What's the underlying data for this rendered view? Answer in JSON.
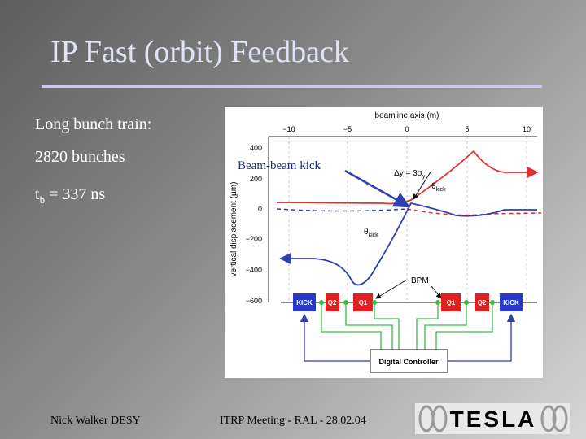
{
  "slide": {
    "title": "IP Fast (orbit) Feedback",
    "bullets": [
      "Long bunch train:",
      "2820 bunches",
      {
        "main": "t",
        "sub": "b",
        "rest": " = 337 ns"
      }
    ],
    "figure": {
      "x_axis_label": "beamline axis (m)",
      "x_ticks": [
        "−10",
        "−5",
        "0",
        "5",
        "10"
      ],
      "y_axis_label": "vertical displacement (µm)",
      "y_ticks": [
        "400",
        "200",
        "0",
        "−200",
        "−400",
        "−600"
      ],
      "annotation": "Beam-beam kick",
      "delta_y": {
        "main": "Δy = 3σ",
        "sub": "y"
      },
      "theta_top": {
        "main": "θ",
        "sub": "kick"
      },
      "theta_bottom": {
        "main": "θ",
        "sub": "kick"
      },
      "bpm": "BPM",
      "elements": [
        "KICK",
        "Q2",
        "Q1",
        "Q1",
        "Q2",
        "KICK"
      ],
      "controller": "Digital Controller"
    },
    "footer_left": "Nick Walker DESY",
    "footer_center": "ITRP Meeting - RAL - 28.02.04",
    "logo": "TESLA"
  }
}
